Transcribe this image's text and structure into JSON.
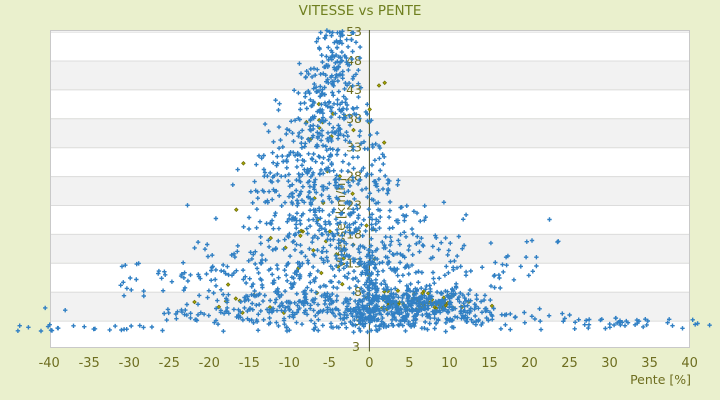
{
  "title": "VITESSE vs PENTE",
  "colors": {
    "background": "#eaf0cd",
    "band_white": "#ffffff",
    "band_gray": "#f2f2f2",
    "grid_line": "#dcdcdc",
    "plot_border": "#c9c9c9",
    "zero_axis_line": "#4c5224",
    "title_text": "#6f7f1f",
    "tick_text": "#6e6e20",
    "series_blue": "#3180c4",
    "series_olive_fill": "#a8a800",
    "series_olive_stroke": "#6b6b0a"
  },
  "chart_data": {
    "type": "scatter",
    "title": "VITESSE vs PENTE",
    "xlabel": "Pente [%]",
    "ylabel": "Vitesse [km/h]",
    "xlim": [
      -40,
      40
    ],
    "ylim": [
      3,
      53
    ],
    "x_ticks": [
      -40,
      -35,
      -30,
      -25,
      -20,
      -15,
      -10,
      -5,
      0,
      5,
      10,
      15,
      20,
      25,
      30,
      35,
      40
    ],
    "y_ticks": [
      3,
      8,
      13,
      18,
      23,
      28,
      33,
      38,
      43,
      48,
      53
    ],
    "axis_bottom_extra_label": "3",
    "grid": "horizontal-bands",
    "legend": "none",
    "seed": 1337,
    "note": "~2000 unlabeled points; cloud reproduced from distribution estimates read off the axes",
    "series": [
      {
        "name": "pente-vitesse-secondary",
        "marker": "diamond",
        "color": "#a8a800",
        "clusters": [
          {
            "n": 55,
            "x": [
              "n",
              6,
              4,
              -2,
              16
            ],
            "y": [
              "n",
              6.3,
              1.2,
              4.5,
              9
            ]
          },
          {
            "n": 30,
            "x": [
              "n",
              -6,
              5,
              -18,
              2
            ],
            "y": [
              "u",
              8,
              34
            ]
          },
          {
            "n": 15,
            "x": [
              "n",
              -4,
              3,
              -12,
              2
            ],
            "y": [
              "u",
              34,
              48
            ]
          },
          {
            "n": 10,
            "x": [
              "u",
              -22,
              -5
            ],
            "y": [
              "u",
              4,
              8
            ]
          }
        ]
      },
      {
        "name": "pente-vitesse-main",
        "marker": "plus",
        "color": "#3180c4",
        "clusters": [
          {
            "n": 55,
            "x": [
              "n",
              -4.3,
              1.6,
              -9,
              -0.8
            ],
            "y": [
              "u",
              48,
              53.2
            ]
          },
          {
            "n": 70,
            "x": [
              "n",
              -4.8,
              2.1,
              -12,
              -0.5
            ],
            "y": [
              "u",
              43,
              48
            ]
          },
          {
            "n": 80,
            "x": [
              "n",
              -5.2,
              2.7,
              -13.5,
              0.2
            ],
            "y": [
              "u",
              38,
              43
            ]
          },
          {
            "n": 92,
            "x": [
              "n",
              -5.8,
              3.4,
              -14.5,
              1.2
            ],
            "y": [
              "u",
              33,
              38
            ]
          },
          {
            "n": 105,
            "x": [
              "n",
              -6.5,
              4.2,
              -17,
              2
            ],
            "y": [
              "u",
              28,
              33
            ]
          },
          {
            "n": 120,
            "x": [
              "n",
              -6.5,
              5.0,
              -20,
              3
            ],
            "y": [
              "u",
              23,
              28
            ]
          },
          {
            "n": 130,
            "x": [
              "n",
              -5.5,
              6.0,
              -23,
              6
            ],
            "y": [
              "u",
              18,
              23
            ]
          },
          {
            "n": 150,
            "x": [
              "n",
              -4.5,
              7.5,
              -28,
              14
            ],
            "y": [
              "u",
              13,
              18
            ]
          },
          {
            "n": 55,
            "x": [
              "u",
              -32,
              -8
            ],
            "y": [
              "u",
              8,
              13
            ]
          },
          {
            "n": 160,
            "x": [
              "n",
              -2,
              8,
              -30,
              18
            ],
            "y": [
              "u",
              8,
              13
            ]
          },
          {
            "n": 215,
            "x": [
              "n",
              6,
              4.5,
              -2,
              18
            ],
            "y": [
              "n",
              6.2,
              1.3,
              4.6,
              9
            ]
          },
          {
            "n": 165,
            "x": [
              "n",
              -6,
              9,
              -33,
              5
            ],
            "y": [
              "u",
              4.5,
              8
            ]
          },
          {
            "n": 140,
            "x": [
              "n",
              7,
              7,
              -5,
              26
            ],
            "y": [
              "u",
              3,
              5.2
            ]
          },
          {
            "n": 110,
            "x": [
              "u",
              -26,
              6
            ],
            "y": [
              "u",
              3,
              5
            ]
          },
          {
            "n": 78,
            "x": [
              "n",
              0.3,
              0.8,
              -1.6,
              2.6
            ],
            "y": [
              "u",
              3,
              16
            ]
          },
          {
            "n": 112,
            "x": [
              "n",
              2,
              10,
              -20,
              24
            ],
            "y": [
              "n",
              2.2,
              0.7,
              0.9,
              3.2
            ]
          },
          {
            "n": 40,
            "x": [
              "u",
              24,
              41
            ],
            "y": [
              "u",
              1.5,
              3.5
            ]
          },
          {
            "n": 24,
            "x": [
              "u",
              -44,
              -24
            ],
            "y": [
              "u",
              1.2,
              2.3
            ]
          },
          {
            "n": 38,
            "x": [
              "u",
              2,
              24
            ],
            "y": [
              "u",
              10,
              17
            ]
          },
          {
            "n": 13,
            "x": [
              "u",
              1,
              14
            ],
            "y": [
              "u",
              17,
              24
            ]
          },
          {
            "n": 6,
            "x": [
              "u",
              0.5,
              4
            ],
            "y": [
              "u",
              24,
              28
            ]
          },
          {
            "pts": [
              [
                1.2,
                33.2
              ],
              [
                23.5,
                16.6
              ],
              [
                -2,
                52.8
              ],
              [
                42.5,
                2.2
              ],
              [
                41,
                2.5
              ],
              [
                -40.5,
                5.2
              ],
              [
                -38,
                4.8
              ],
              [
                22.5,
                20.5
              ]
            ]
          }
        ]
      }
    ]
  }
}
